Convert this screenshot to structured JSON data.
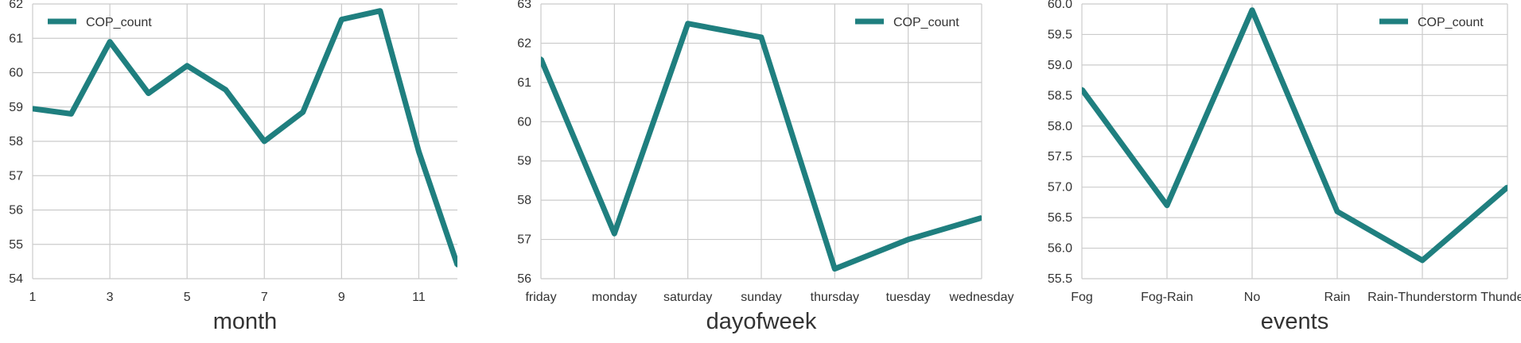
{
  "colors": {
    "series": "#1f7f7f",
    "grid": "#cbcbcb",
    "text": "#333333"
  },
  "chart_data": [
    {
      "type": "line",
      "xlabel": "month",
      "ylabel": "",
      "legend": {
        "label": "COP_count",
        "placement": "top-left"
      },
      "grid": true,
      "xlim": [
        1,
        12
      ],
      "ylim": [
        54,
        62
      ],
      "xticks": [
        1,
        3,
        5,
        7,
        9,
        11
      ],
      "yticks": [
        54,
        55,
        56,
        57,
        58,
        59,
        60,
        61,
        62
      ],
      "series": [
        {
          "name": "COP_count",
          "x": [
            1,
            2,
            3,
            4,
            5,
            6,
            7,
            8,
            9,
            10,
            11,
            12
          ],
          "values": [
            58.95,
            58.8,
            60.9,
            59.4,
            60.2,
            59.5,
            58.0,
            58.85,
            61.55,
            61.8,
            57.7,
            54.4
          ]
        }
      ]
    },
    {
      "type": "line",
      "xlabel": "dayofweek",
      "ylabel": "",
      "legend": {
        "label": "COP_count",
        "placement": "top-right"
      },
      "grid": true,
      "categories": [
        "friday",
        "monday",
        "saturday",
        "sunday",
        "thursday",
        "tuesday",
        "wednesday"
      ],
      "ylim": [
        56,
        63
      ],
      "yticks": [
        56,
        57,
        58,
        59,
        60,
        61,
        62,
        63
      ],
      "series": [
        {
          "name": "COP_count",
          "values": [
            61.6,
            57.15,
            62.5,
            62.15,
            56.25,
            57.0,
            57.55
          ]
        }
      ]
    },
    {
      "type": "line",
      "xlabel": "events",
      "ylabel": "",
      "legend": {
        "label": "COP_count",
        "placement": "top-right"
      },
      "grid": true,
      "categories": [
        "Fog",
        "Fog-Rain",
        "No",
        "Rain",
        "Rain-Thunderstorm",
        "Thunderstorm"
      ],
      "tick_labels": [
        "Fog",
        "Fog-Rain",
        "No",
        "Rain",
        "Rain-Thunderstorm",
        "Thunders"
      ],
      "ylim": [
        55.5,
        60.0
      ],
      "yticks": [
        "55.5",
        "56.0",
        "56.5",
        "57.0",
        "57.5",
        "58.0",
        "58.5",
        "59.0",
        "59.5",
        "60.0"
      ],
      "series": [
        {
          "name": "COP_count",
          "values": [
            58.6,
            56.7,
            59.9,
            56.6,
            55.8,
            57.0
          ]
        }
      ]
    }
  ]
}
